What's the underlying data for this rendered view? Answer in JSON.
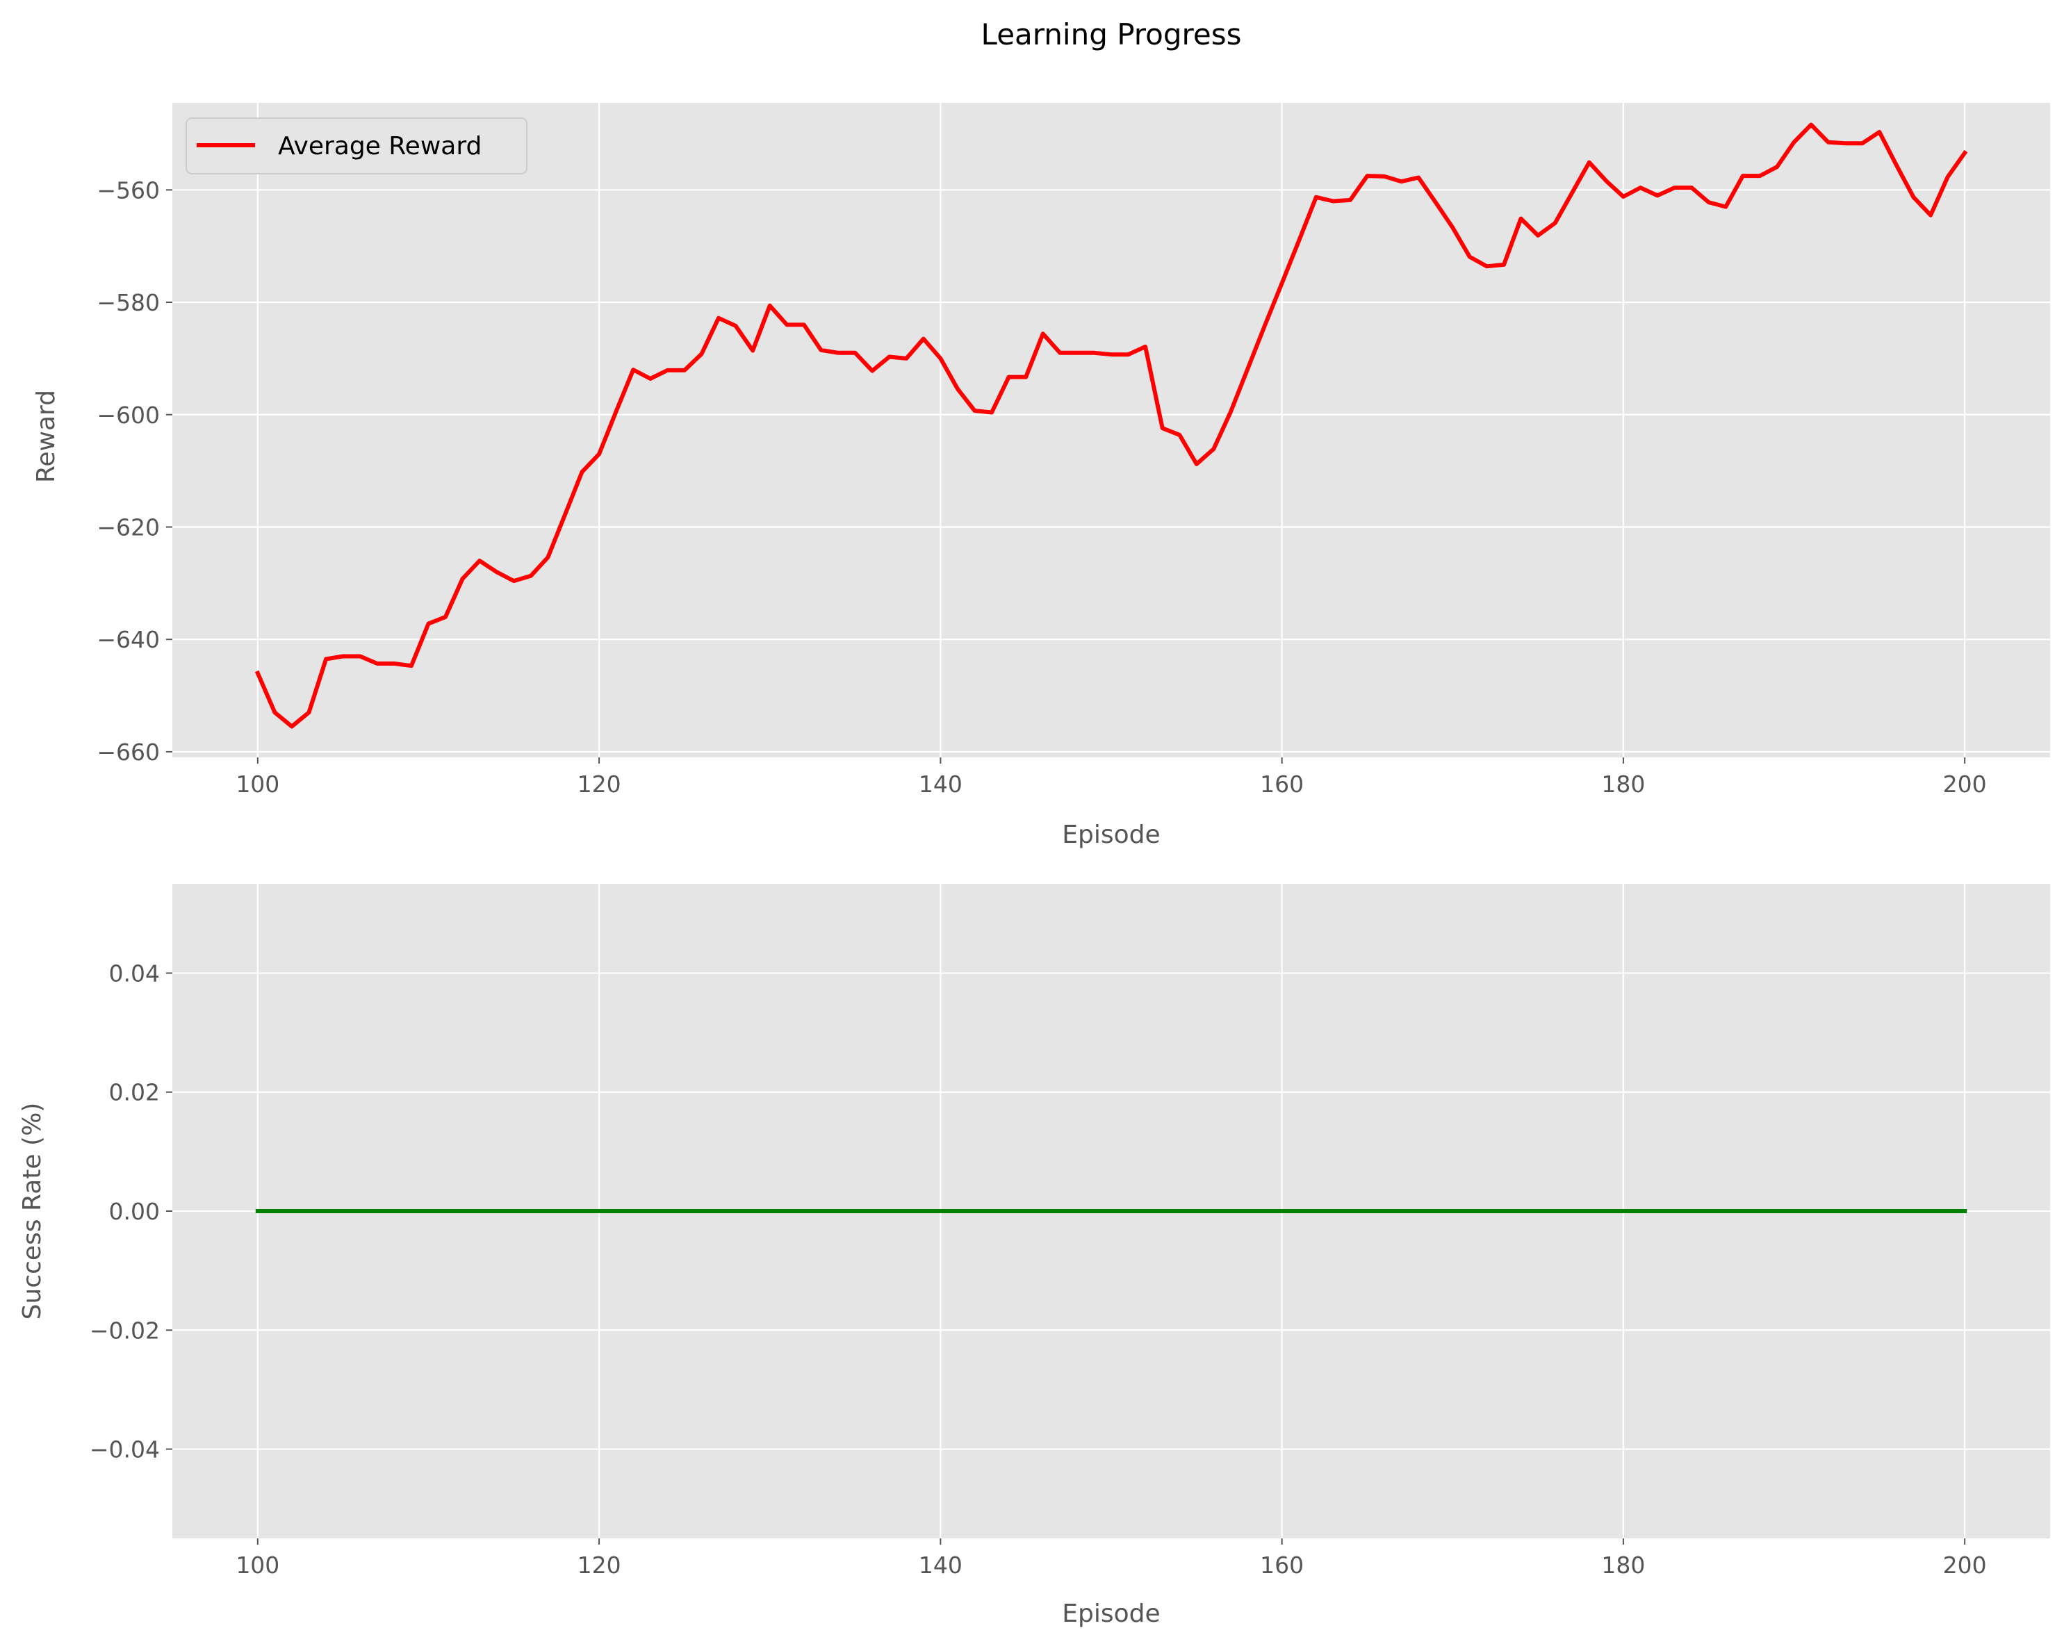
{
  "figure": {
    "title": "Learning Progress"
  },
  "chart_data": [
    {
      "type": "line",
      "xlabel": "Episode",
      "ylabel": "Reward",
      "xlim": [
        95,
        205
      ],
      "ylim": [
        -661,
        -544.5
      ],
      "xticks": [
        100,
        120,
        140,
        160,
        180,
        200
      ],
      "yticks": [
        -660,
        -640,
        -620,
        -600,
        -580,
        -560
      ],
      "grid": true,
      "legend": "top-left",
      "series": [
        {
          "name": "Average Reward",
          "color": "#ff0000",
          "x": [
            100,
            101,
            102,
            103,
            104,
            105,
            106,
            107,
            108,
            109,
            110,
            111,
            112,
            113,
            114,
            115,
            116,
            117,
            118,
            119,
            120,
            121,
            122,
            123,
            124,
            125,
            126,
            127,
            128,
            129,
            130,
            131,
            132,
            133,
            134,
            135,
            136,
            137,
            138,
            139,
            140,
            141,
            142,
            143,
            144,
            145,
            146,
            147,
            148,
            149,
            150,
            151,
            152,
            153,
            154,
            155,
            156,
            157,
            158,
            159,
            160,
            161,
            162,
            163,
            164,
            165,
            166,
            167,
            168,
            169,
            170,
            171,
            172,
            173,
            174,
            175,
            176,
            177,
            178,
            179,
            180,
            181,
            182,
            183,
            184,
            185,
            186,
            187,
            188,
            189,
            190,
            191,
            192,
            193,
            194,
            195,
            196,
            197,
            198,
            199,
            200
          ],
          "y": [
            -646,
            -653,
            -655.5,
            -653,
            -643.5,
            -643,
            -643,
            -644.3,
            -644.3,
            -644.7,
            -637.2,
            -636,
            -629.2,
            -626,
            -628,
            -629.6,
            -628.7,
            -625.4,
            -617.8,
            -610.2,
            -607,
            -599.4,
            -592,
            -593.6,
            -592.1,
            -592.1,
            -589.2,
            -582.8,
            -584.2,
            -588.6,
            -580.6,
            -584,
            -584,
            -588.5,
            -589,
            -589,
            -592.2,
            -589.7,
            -590,
            -586.5,
            -590,
            -595.4,
            -599.3,
            -599.6,
            -593.3,
            -593.3,
            -585.6,
            -589,
            -589,
            -589,
            -589.3,
            -589.3,
            -587.9,
            -602.4,
            -603.6,
            -608.8,
            -606.1,
            -599.5,
            -591.8,
            -584.1,
            -576.6,
            -569,
            -561.3,
            -562,
            -561.8,
            -557.5,
            -557.6,
            -558.5,
            -557.8,
            -562.2,
            -566.7,
            -571.9,
            -573.6,
            -573.3,
            -565.1,
            -568.1,
            -565.9,
            -560.5,
            -555.1,
            -558.4,
            -561.2,
            -559.6,
            -561,
            -559.6,
            -559.6,
            -562.2,
            -563,
            -557.5,
            -557.5,
            -555.9,
            -551.5,
            -548.4,
            -551.5,
            -551.7,
            -551.7,
            -549.7,
            -555.6,
            -561.3,
            -564.5,
            -557.7,
            -553.4
          ]
        }
      ]
    },
    {
      "type": "line",
      "xlabel": "Episode",
      "ylabel": "Success Rate (%)",
      "xlim": [
        95,
        205
      ],
      "ylim": [
        -0.055,
        0.055
      ],
      "xticks": [
        100,
        120,
        140,
        160,
        180,
        200
      ],
      "yticks": [
        -0.04,
        -0.02,
        0.0,
        0.02,
        0.04
      ],
      "ytick_labels": [
        "−0.04",
        "−0.02",
        "0.00",
        "0.02",
        "0.04"
      ],
      "grid": true,
      "series": [
        {
          "color": "#008000",
          "x": [
            100,
            200
          ],
          "y": [
            0,
            0
          ]
        }
      ]
    }
  ]
}
